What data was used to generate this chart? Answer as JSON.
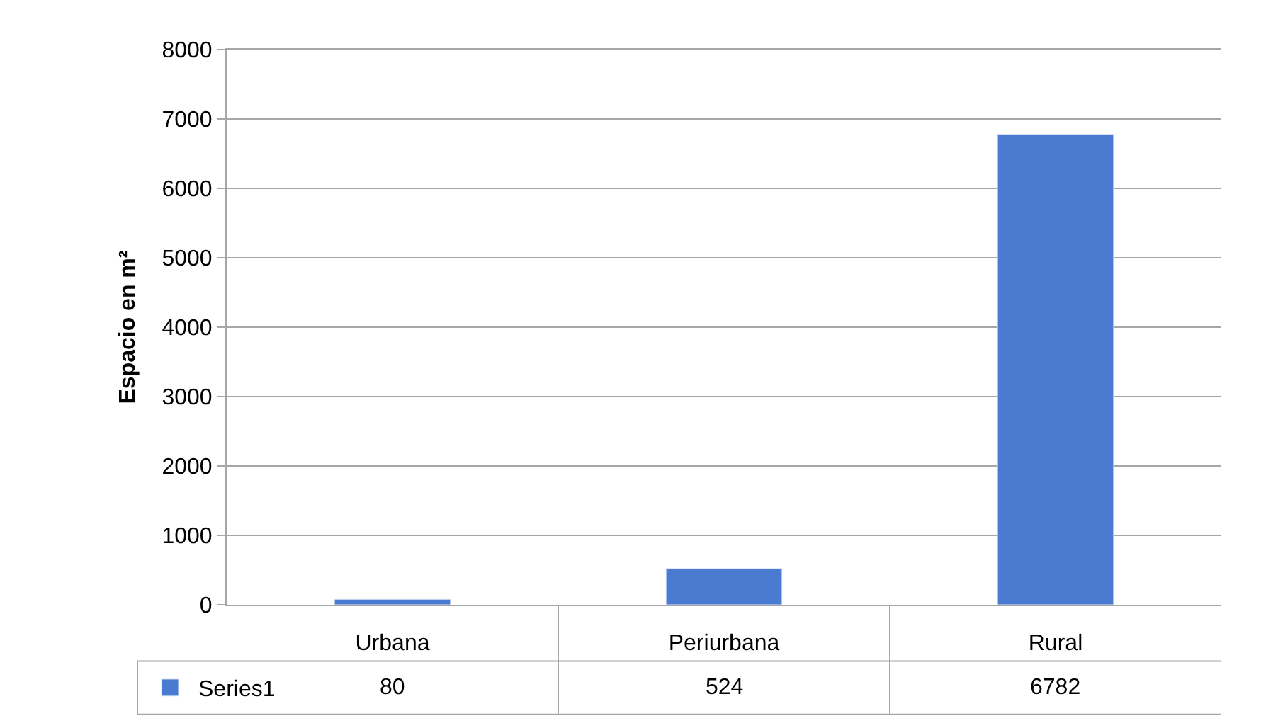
{
  "chart_data": {
    "type": "bar",
    "ylabel": "Espacio en m²",
    "categories": [
      "Urbana",
      "Periurbana",
      "Rural"
    ],
    "series": [
      {
        "name": "Series1",
        "color": "#4a7bd0",
        "values": [
          80,
          524,
          6782
        ]
      }
    ],
    "ylim": [
      0,
      8000
    ],
    "yticks": [
      0,
      1000,
      2000,
      3000,
      4000,
      5000,
      6000,
      7000,
      8000
    ],
    "grid": "y",
    "legend": "bottom left",
    "data_labels": true
  }
}
